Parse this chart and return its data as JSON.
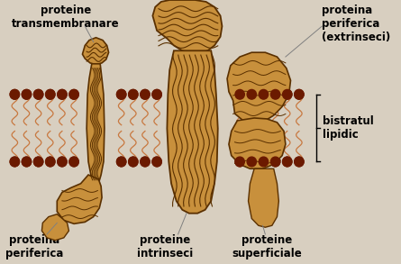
{
  "bg_color": "#d8cfc0",
  "membrane_color": "#c8903c",
  "membrane_dark": "#5a3000",
  "lipid_tail_color": "#c87840",
  "head_color": "#6b1a00",
  "figure_bg": "#d8cfc0",
  "labels": {
    "top_left": "proteine\ntransmembranare",
    "top_right": "proteina\nperiferica\n(extrinseci)",
    "bottom_left": "proteina\nperiferica",
    "bottom_center": "proteine\nintrinseci",
    "bottom_right": "proteine\nsuperficiale",
    "right_bracket": "bistratul\nlipidic"
  },
  "figsize": [
    4.45,
    2.93
  ],
  "dpi": 100
}
